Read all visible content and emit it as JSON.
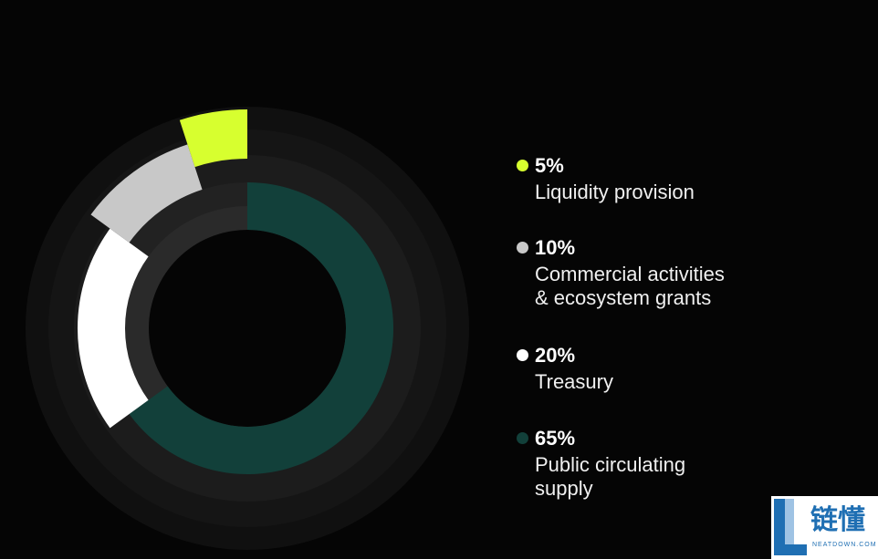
{
  "chart_data": {
    "type": "pie",
    "categories": [
      "Public circulating supply",
      "Treasury",
      "Commercial activities & ecosystem grants",
      "Liquidity provision"
    ],
    "values": [
      65,
      20,
      10,
      5
    ],
    "unit": "%",
    "title": "",
    "colors": [
      "#12403a",
      "#ffffff",
      "#c8c8c8",
      "#d7ff2f"
    ]
  },
  "legend": [
    {
      "percent": "5%",
      "label": "Liquidity provision",
      "color": "#d7ff2f"
    },
    {
      "percent": "10%",
      "label": "Commercial activities\n& ecosystem grants",
      "color": "#c8c8c8"
    },
    {
      "percent": "20%",
      "label": "Treasury",
      "color": "#ffffff"
    },
    {
      "percent": "65%",
      "label": "Public circulating\nsupply",
      "color": "#12403a"
    }
  ],
  "watermark": {
    "text": "链懂",
    "subtext": "NEATDOWN.COM"
  }
}
